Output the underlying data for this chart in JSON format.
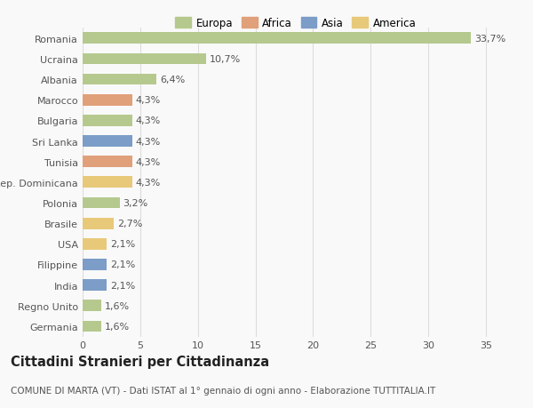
{
  "categories": [
    "Germania",
    "Regno Unito",
    "India",
    "Filippine",
    "USA",
    "Brasile",
    "Polonia",
    "Rep. Dominicana",
    "Tunisia",
    "Sri Lanka",
    "Bulgaria",
    "Marocco",
    "Albania",
    "Ucraina",
    "Romania"
  ],
  "values": [
    1.6,
    1.6,
    2.1,
    2.1,
    2.1,
    2.7,
    3.2,
    4.3,
    4.3,
    4.3,
    4.3,
    4.3,
    6.4,
    10.7,
    33.7
  ],
  "labels": [
    "1,6%",
    "1,6%",
    "2,1%",
    "2,1%",
    "2,1%",
    "2,7%",
    "3,2%",
    "4,3%",
    "4,3%",
    "4,3%",
    "4,3%",
    "4,3%",
    "6,4%",
    "10,7%",
    "33,7%"
  ],
  "colors": [
    "#b5c98e",
    "#b5c98e",
    "#7b9dc7",
    "#7b9dc7",
    "#e8c97a",
    "#e8c97a",
    "#b5c98e",
    "#e8c97a",
    "#e0a07a",
    "#7b9dc7",
    "#b5c98e",
    "#e0a07a",
    "#b5c98e",
    "#b5c98e",
    "#b5c98e"
  ],
  "legend_labels": [
    "Europa",
    "Africa",
    "Asia",
    "America"
  ],
  "legend_colors": [
    "#b5c98e",
    "#e0a07a",
    "#7b9dc7",
    "#e8c97a"
  ],
  "title": "Cittadini Stranieri per Cittadinanza",
  "subtitle": "COMUNE DI MARTA (VT) - Dati ISTAT al 1° gennaio di ogni anno - Elaborazione TUTTITALIA.IT",
  "xlim": [
    0,
    37
  ],
  "xticks": [
    0,
    5,
    10,
    15,
    20,
    25,
    30,
    35
  ],
  "background_color": "#f9f9f9",
  "grid_color": "#dddddd",
  "bar_height": 0.55,
  "label_fontsize": 8,
  "tick_fontsize": 8,
  "title_fontsize": 10.5,
  "subtitle_fontsize": 7.5
}
